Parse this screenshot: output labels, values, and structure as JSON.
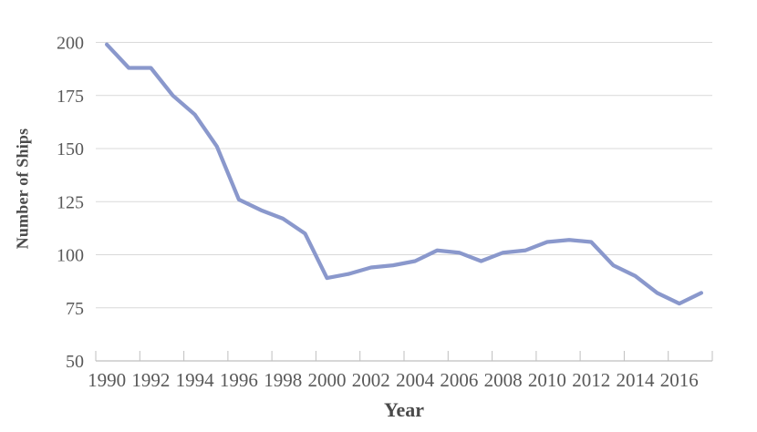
{
  "chart_data": {
    "type": "line",
    "title": "",
    "xlabel": "Year",
    "ylabel": "Number of Ships",
    "x": [
      1990,
      1991,
      1992,
      1993,
      1994,
      1995,
      1996,
      1997,
      1998,
      1999,
      2000,
      2001,
      2002,
      2003,
      2004,
      2005,
      2006,
      2007,
      2008,
      2009,
      2010,
      2011,
      2012,
      2013,
      2014,
      2015,
      2016,
      2017
    ],
    "values": [
      199,
      188,
      188,
      175,
      166,
      151,
      126,
      121,
      117,
      110,
      89,
      91,
      94,
      95,
      97,
      102,
      101,
      97,
      101,
      102,
      106,
      107,
      106,
      95,
      90,
      82,
      77,
      82
    ],
    "ylim": [
      50,
      200
    ],
    "yticks": [
      50,
      75,
      100,
      125,
      150,
      175,
      200
    ],
    "xtick_label_years": [
      1990,
      1992,
      1994,
      1996,
      1998,
      2000,
      2002,
      2004,
      2006,
      2008,
      2010,
      2012,
      2014,
      2016
    ],
    "grid": "horizontal",
    "legend": "none",
    "colors": {
      "line": "#8a98cc",
      "gridline": "#d9d9d9",
      "axis": "#bfbfbf",
      "tick_label": "#595959",
      "axis_title": "#4a4a4a",
      "background": "#ffffff"
    }
  }
}
